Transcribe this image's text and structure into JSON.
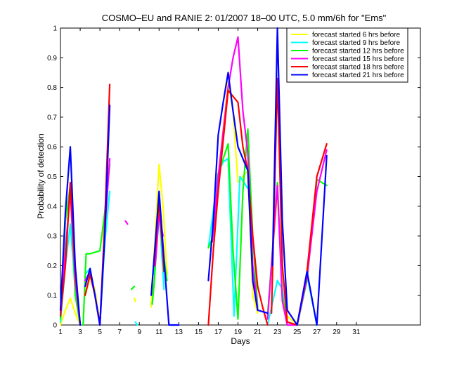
{
  "chart_data": {
    "type": "line",
    "title": "COSMO–EU and RANIE 2: 01/2007 18–00 UTC, 5.0 mm/6h for \"Ems\"",
    "xlabel": "Days",
    "ylabel": "Probability of detection",
    "xlim": [
      1,
      37.5
    ],
    "ylim": [
      0,
      1
    ],
    "xticks": [
      1,
      3,
      5,
      7,
      9,
      11,
      13,
      15,
      17,
      19,
      21,
      23,
      25,
      27,
      29,
      31
    ],
    "xtick_labels": [
      "1",
      "3",
      "5",
      "7",
      "9",
      "11",
      "13",
      "15",
      "17",
      "19",
      "21",
      "23",
      "25",
      "27",
      "29",
      "31"
    ],
    "yticks": [
      0,
      0.1,
      0.2,
      0.3,
      0.4,
      0.5,
      0.6,
      0.7,
      0.8,
      0.9,
      1
    ],
    "ytick_labels": [
      "0",
      "0.1",
      "0.2",
      "0.3",
      "0.4",
      "0.5",
      "0.6",
      "0.7",
      "0.8",
      "0.9",
      "1"
    ],
    "grid": false,
    "legend_position": "top-right",
    "series": [
      {
        "name": "forecast started 6 hrs before",
        "color": "#ffff00",
        "points": [
          [
            [
              1,
              0.0
            ],
            [
              1.5,
              0.05
            ],
            [
              2,
              0.09
            ],
            [
              2.5,
              0.04
            ],
            [
              3,
              0.0
            ]
          ],
          [
            [
              3.5,
              0.1
            ],
            [
              4,
              0.16
            ],
            [
              4.5,
              0.12
            ],
            [
              5,
              0.0
            ]
          ],
          [
            [
              8.5,
              0.09
            ],
            [
              8.6,
              0.08
            ]
          ],
          [
            [
              10.2,
              0.06
            ],
            [
              10.6,
              0.3
            ],
            [
              11,
              0.54
            ],
            [
              11.4,
              0.4
            ],
            [
              11.8,
              0.17
            ]
          ],
          [
            [
              16.2,
              0.25
            ],
            [
              17,
              0.5
            ],
            [
              18,
              0.82
            ],
            [
              18.5,
              0.72
            ],
            [
              19,
              0.48
            ],
            [
              20,
              0.52
            ],
            [
              20.5,
              0.1
            ],
            [
              21,
              0.04
            ]
          ],
          [
            [
              22,
              0.03
            ],
            [
              23,
              0.45
            ],
            [
              23.5,
              0.12
            ],
            [
              24,
              0.03
            ],
            [
              25,
              0.0
            ],
            [
              26,
              0.17
            ],
            [
              27,
              0.0
            ]
          ]
        ]
      },
      {
        "name": "forecast started 9 hrs before",
        "color": "#00ffff",
        "points": [
          [
            [
              1,
              0.01
            ],
            [
              1.5,
              0.2
            ],
            [
              2,
              0.34
            ],
            [
              2.5,
              0.12
            ],
            [
              3,
              0.0
            ]
          ],
          [
            [
              3.5,
              0.17
            ],
            [
              4,
              0.19
            ],
            [
              4.5,
              0.1
            ],
            [
              5,
              0.0
            ],
            [
              5.5,
              0.28
            ],
            [
              6,
              0.45
            ]
          ],
          [
            [
              8.6,
              0.01
            ],
            [
              8.8,
              0.0
            ]
          ],
          [
            [
              10.5,
              0.17
            ],
            [
              11,
              0.38
            ],
            [
              11.5,
              0.12
            ]
          ],
          [
            [
              16,
              0.26
            ],
            [
              17,
              0.51
            ],
            [
              17.5,
              0.55
            ],
            [
              18,
              0.56
            ],
            [
              18.6,
              0.03
            ],
            [
              19.2,
              0.5
            ],
            [
              20,
              0.46
            ]
          ],
          [
            [
              22,
              0.0
            ],
            [
              23,
              0.15
            ],
            [
              23.5,
              0.12
            ],
            [
              24,
              0.01
            ],
            [
              25,
              0.0
            ],
            [
              26,
              0.17
            ],
            [
              27,
              0.0
            ]
          ]
        ]
      },
      {
        "name": "forecast started 12 hrs before",
        "color": "#00ff00",
        "points": [
          [
            [
              1,
              0.02
            ],
            [
              1.5,
              0.35
            ],
            [
              2,
              0.47
            ],
            [
              2.5,
              0.1
            ],
            [
              3,
              0.0
            ]
          ],
          [
            [
              3.3,
              0.0
            ],
            [
              3.6,
              0.24
            ],
            [
              4,
              0.24
            ],
            [
              5,
              0.25
            ],
            [
              5.5,
              0.38
            ],
            [
              6,
              0.54
            ]
          ],
          [
            [
              8.2,
              0.12
            ],
            [
              8.5,
              0.13
            ]
          ],
          [
            [
              10.3,
              0.07
            ],
            [
              10.5,
              0.14
            ],
            [
              11,
              0.39
            ],
            [
              11.4,
              0.25
            ],
            [
              11.8,
              0.15
            ]
          ],
          [
            [
              16,
              0.26
            ],
            [
              16.5,
              0.3
            ],
            [
              17,
              0.51
            ],
            [
              18,
              0.61
            ],
            [
              18.5,
              0.25
            ],
            [
              19,
              0.02
            ],
            [
              19.5,
              0.45
            ],
            [
              20,
              0.66
            ],
            [
              20.5,
              0.3
            ],
            [
              21,
              0.06
            ]
          ],
          [
            [
              22,
              0.03
            ],
            [
              23,
              0.48
            ],
            [
              23.5,
              0.1
            ],
            [
              24,
              0.0
            ],
            [
              25,
              0.0
            ],
            [
              26,
              0.15
            ],
            [
              27,
              0.49
            ],
            [
              28,
              0.47
            ]
          ]
        ]
      },
      {
        "name": "forecast started 15 hrs before",
        "color": "#ff00ff",
        "points": [
          [
            [
              1,
              0.04
            ],
            [
              1.5,
              0.25
            ],
            [
              2,
              0.45
            ],
            [
              2.5,
              0.15
            ],
            [
              3,
              0.0
            ]
          ],
          [
            [
              3.5,
              0.15
            ],
            [
              4,
              0.18
            ],
            [
              4.5,
              0.1
            ],
            [
              5,
              0.0
            ],
            [
              5.5,
              0.32
            ],
            [
              6,
              0.56
            ]
          ],
          [
            [
              7.6,
              0.35
            ],
            [
              7.8,
              0.34
            ]
          ],
          [
            [
              10.6,
              0.2
            ],
            [
              11,
              0.37
            ],
            [
              11.4,
              0.3
            ]
          ],
          [
            [
              16.4,
              0.28
            ],
            [
              17,
              0.5
            ],
            [
              18,
              0.8
            ],
            [
              18.5,
              0.9
            ],
            [
              19,
              0.97
            ],
            [
              19.5,
              0.72
            ],
            [
              20,
              0.58
            ],
            [
              20.5,
              0.2
            ],
            [
              21,
              0.05
            ]
          ],
          [
            [
              22,
              0.02
            ],
            [
              23,
              0.47
            ],
            [
              23.5,
              0.08
            ],
            [
              24,
              0.0
            ],
            [
              25,
              0.0
            ],
            [
              26,
              0.16
            ],
            [
              27,
              0.45
            ],
            [
              28,
              0.59
            ]
          ]
        ]
      },
      {
        "name": "forecast started 18 hrs before",
        "color": "#ff0000",
        "points": [
          [
            [
              1,
              0.03
            ],
            [
              1.5,
              0.2
            ],
            [
              2,
              0.48
            ],
            [
              2.5,
              0.18
            ],
            [
              3,
              0.0
            ]
          ],
          [
            [
              3.5,
              0.1
            ],
            [
              4,
              0.17
            ],
            [
              4.5,
              0.1
            ],
            [
              5,
              0.0
            ],
            [
              5.5,
              0.35
            ],
            [
              6,
              0.81
            ]
          ],
          [
            [
              10.5,
              0.2
            ],
            [
              11,
              0.42
            ],
            [
              11.5,
              0.18
            ]
          ],
          [
            [
              16,
              0.0
            ],
            [
              16.5,
              0.25
            ],
            [
              17,
              0.45
            ],
            [
              18,
              0.79
            ],
            [
              19,
              0.75
            ],
            [
              19.5,
              0.6
            ],
            [
              20,
              0.52
            ],
            [
              20.5,
              0.3
            ],
            [
              21,
              0.13
            ],
            [
              21.5,
              0.06
            ],
            [
              22,
              0.0
            ]
          ],
          [
            [
              22.4,
              0.04
            ],
            [
              23,
              0.83
            ],
            [
              23.5,
              0.2
            ],
            [
              24,
              0.01
            ],
            [
              25,
              0.0
            ],
            [
              26,
              0.18
            ],
            [
              27,
              0.5
            ],
            [
              28,
              0.61
            ]
          ]
        ]
      },
      {
        "name": "forecast started 21 hrs before",
        "color": "#0000ff",
        "points": [
          [
            [
              1,
              0.05
            ],
            [
              1.5,
              0.38
            ],
            [
              2,
              0.6
            ],
            [
              2.5,
              0.2
            ],
            [
              3,
              0.0
            ]
          ],
          [
            [
              3.5,
              0.13
            ],
            [
              4,
              0.19
            ],
            [
              4.5,
              0.1
            ],
            [
              5,
              0.0
            ],
            [
              5.5,
              0.3
            ],
            [
              6,
              0.74
            ]
          ],
          [
            [
              10.2,
              0.1
            ],
            [
              10.6,
              0.27
            ],
            [
              11,
              0.45
            ],
            [
              11.5,
              0.22
            ],
            [
              12,
              0.0
            ],
            [
              13,
              0.0
            ]
          ],
          [
            [
              16,
              0.15
            ],
            [
              16.5,
              0.35
            ],
            [
              17,
              0.64
            ],
            [
              17.5,
              0.75
            ],
            [
              18,
              0.85
            ],
            [
              18.5,
              0.72
            ],
            [
              19,
              0.6
            ],
            [
              20,
              0.52
            ],
            [
              20.5,
              0.15
            ],
            [
              21,
              0.05
            ],
            [
              22,
              0.04
            ]
          ],
          [
            [
              22.5,
              0.2
            ],
            [
              23,
              1.0
            ],
            [
              23.5,
              0.35
            ],
            [
              24,
              0.05
            ],
            [
              25,
              0.0
            ],
            [
              26,
              0.18
            ],
            [
              27,
              0.0
            ],
            [
              28,
              0.57
            ]
          ]
        ]
      }
    ]
  }
}
